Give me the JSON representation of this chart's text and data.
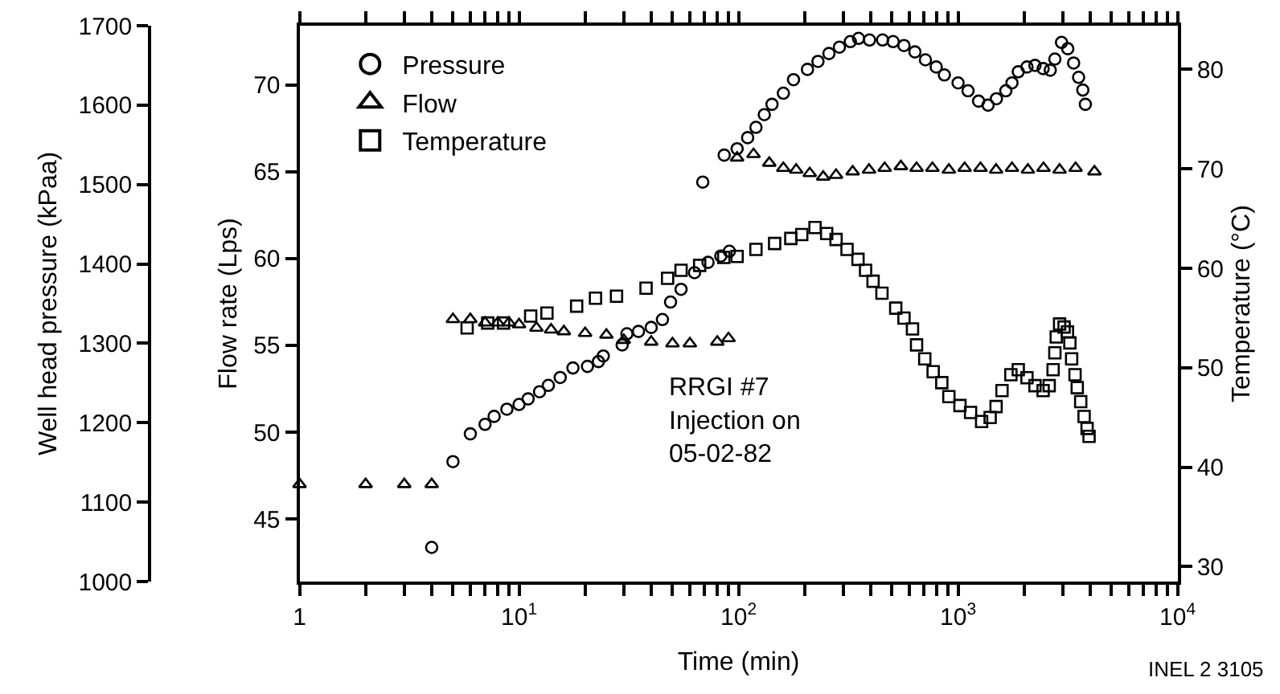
{
  "chart_data": {
    "type": "scatter",
    "xlabel": "Time (min)",
    "ylabel": "Well head pressure (kPaa)",
    "y2label": "Flow rate (Lps)",
    "y3label": "Temperature (°C)",
    "log": "x",
    "legend": "top left",
    "xlim": [
      1,
      10000
    ],
    "xticks": [
      1,
      {
        "value": 2,
        "label": null
      },
      {
        "value": 3,
        "label": null
      },
      {
        "value": 4,
        "label": null
      },
      {
        "value": 5,
        "label": null
      },
      {
        "value": 6,
        "label": null
      },
      {
        "value": 7,
        "label": null
      },
      {
        "value": 8,
        "label": null
      },
      {
        "value": 9,
        "label": null
      },
      {
        "value": 10,
        "label": "10$^{1}$"
      },
      {
        "value": 20,
        "label": null
      },
      {
        "value": 30,
        "label": null
      },
      {
        "value": 40,
        "label": null
      },
      {
        "value": 50,
        "label": null
      },
      {
        "value": 60,
        "label": null
      },
      {
        "value": 70,
        "label": null
      },
      {
        "value": 80,
        "label": null
      },
      {
        "value": 90,
        "label": null
      },
      {
        "value": 100,
        "label": "10$^{2}$"
      },
      {
        "value": 200,
        "label": null
      },
      {
        "value": 300,
        "label": null
      },
      {
        "value": 400,
        "label": null
      },
      {
        "value": 500,
        "label": null
      },
      {
        "value": 600,
        "label": null
      },
      {
        "value": 700,
        "label": null
      },
      {
        "value": 800,
        "label": null
      },
      {
        "value": 900,
        "label": null
      },
      {
        "value": 1000,
        "label": "10$^{3}$"
      },
      {
        "value": 2000,
        "label": null
      },
      {
        "value": 3000,
        "label": null
      },
      {
        "value": 4000,
        "label": null
      },
      {
        "value": 5000,
        "label": null
      },
      {
        "value": 6000,
        "label": null
      },
      {
        "value": 7000,
        "label": null
      },
      {
        "value": 8000,
        "label": null
      },
      {
        "value": 9000,
        "label": null
      },
      {
        "value": 10000,
        "label": "10$^{4}$"
      }
    ],
    "ylim": [
      1000,
      1700
    ],
    "yticks": [
      1000,
      1100,
      1200,
      1300,
      1400,
      1500,
      1600,
      1700
    ],
    "y2lim": [
      41.4,
      73.4
    ],
    "y2ticks": [
      45,
      50,
      55,
      60,
      65,
      70
    ],
    "y3lim": [
      28.5,
      84.4
    ],
    "y3ticks": [
      30,
      40,
      50,
      60,
      70,
      80
    ],
    "annotations": [
      "RRGI #7\nInjection on\n05-02-82",
      "INEL 2 3105"
    ],
    "series": [
      {
        "name": "Pressure",
        "color": "#000000",
        "marker": "circle",
        "axis": "y",
        "x": [
          4,
          5,
          6,
          7,
          7.7,
          8.8,
          10,
          11,
          12.4,
          13.6,
          15.4,
          17.6,
          20.5,
          23,
          24.2,
          29.5,
          31,
          35,
          40,
          45,
          49,
          54.7,
          63,
          72.6,
          83,
          90.8,
          68.7,
          86,
          98.5,
          110,
          120,
          131,
          142,
          160,
          178,
          206,
          230,
          258,
          288,
          323,
          352,
          395,
          453,
          506,
          567,
          636,
          710,
          795,
          866,
          1000,
          1110,
          1240,
          1370,
          1495,
          1650,
          1760,
          1880,
          2060,
          2240,
          2440,
          2630,
          2760,
          2960,
          3160,
          3360,
          3540,
          3700,
          3800
        ],
        "values": [
          1043,
          1151,
          1186,
          1198,
          1208,
          1217,
          1223,
          1230,
          1239,
          1247,
          1257,
          1269,
          1271,
          1277,
          1284,
          1298,
          1312,
          1315,
          1320,
          1330,
          1352,
          1368,
          1389,
          1402,
          1410,
          1416,
          1503,
          1537,
          1545,
          1559,
          1572,
          1588,
          1601,
          1615,
          1632,
          1645,
          1655,
          1665,
          1673,
          1680,
          1684,
          1682,
          1682,
          1680,
          1675,
          1667,
          1657,
          1648,
          1638,
          1628,
          1618,
          1605,
          1600,
          1608,
          1618,
          1628,
          1642,
          1648,
          1650,
          1646,
          1644,
          1658,
          1679,
          1671,
          1653,
          1635,
          1619,
          1601
        ]
      },
      {
        "name": "Flow",
        "color": "#000000",
        "marker": "triangle",
        "axis": "y2",
        "x": [
          1,
          2,
          3,
          4,
          5,
          6,
          7,
          8,
          9,
          10,
          12,
          14,
          16,
          20,
          25,
          30,
          40,
          50,
          60,
          80,
          90,
          98.5,
          117,
          138,
          160,
          183,
          211,
          243,
          278,
          331,
          393,
          463,
          549,
          647,
          764,
          908,
          1071,
          1265,
          1490,
          1760,
          2080,
          2450,
          2900,
          3430,
          4180
        ],
        "values": [
          47,
          47,
          47,
          47,
          56.5,
          56.5,
          56.3,
          56.3,
          56.3,
          56.2,
          56,
          55.9,
          55.8,
          55.7,
          55.6,
          55.3,
          55.2,
          55.1,
          55.1,
          55.2,
          55.4,
          65.8,
          66,
          65.5,
          65.2,
          65.1,
          64.9,
          64.7,
          64.8,
          65,
          65.1,
          65.2,
          65.3,
          65.2,
          65.2,
          65.1,
          65.2,
          65.2,
          65.1,
          65.2,
          65.1,
          65.2,
          65.1,
          65.2,
          65
        ]
      },
      {
        "name": "Temperature",
        "color": "#000000",
        "marker": "square",
        "axis": "y3",
        "x": [
          5.8,
          7.2,
          8.5,
          11.3,
          13.4,
          18.3,
          22.3,
          27.8,
          37.9,
          47.5,
          54.7,
          66.5,
          85.6,
          98.5,
          120,
          146,
          173,
          194,
          223,
          252,
          278,
          312,
          350,
          379,
          410,
          450,
          520,
          567,
          620,
          647,
          705,
          770,
          843,
          908,
          1020,
          1140,
          1280,
          1400,
          1490,
          1585,
          1740,
          1880,
          2060,
          2240,
          2440,
          2600,
          2710,
          2760,
          2800,
          2900,
          3040,
          3150,
          3230,
          3290,
          3410,
          3490,
          3620,
          3750,
          3870,
          3950
        ],
        "values": [
          54,
          54.5,
          54.5,
          55.2,
          55.5,
          56.2,
          57,
          57.2,
          58,
          59,
          59.8,
          60.3,
          61.1,
          61.2,
          61.9,
          62.5,
          63,
          63.4,
          64.1,
          63.5,
          62.9,
          61.9,
          60.9,
          59.8,
          58.7,
          57.5,
          56,
          55,
          53.9,
          52.3,
          50.9,
          49.6,
          48.5,
          47.1,
          46.2,
          45.5,
          44.6,
          45,
          46.1,
          47.7,
          49.3,
          49.8,
          49,
          48.2,
          47.7,
          48.2,
          49.8,
          51.5,
          53.1,
          54.4,
          54.1,
          53.6,
          52.5,
          50.9,
          49.3,
          48,
          46.6,
          45.1,
          43.9,
          43.1
        ]
      }
    ]
  }
}
